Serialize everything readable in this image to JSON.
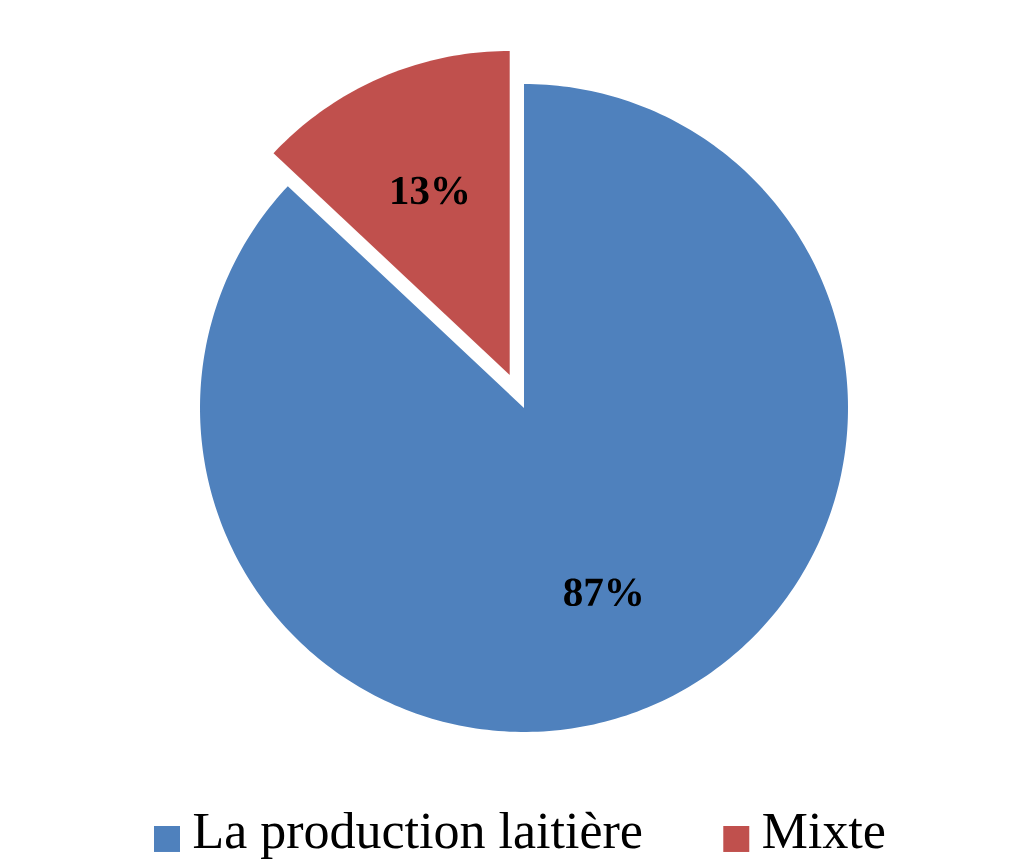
{
  "chart_data": {
    "type": "pie",
    "categories": [
      "La production laitière",
      "Mixte"
    ],
    "values": [
      87,
      13
    ],
    "colors": [
      "#4f81bd",
      "#c0504d"
    ],
    "value_labels": [
      "87%",
      "13%"
    ],
    "legend": "bottom"
  }
}
